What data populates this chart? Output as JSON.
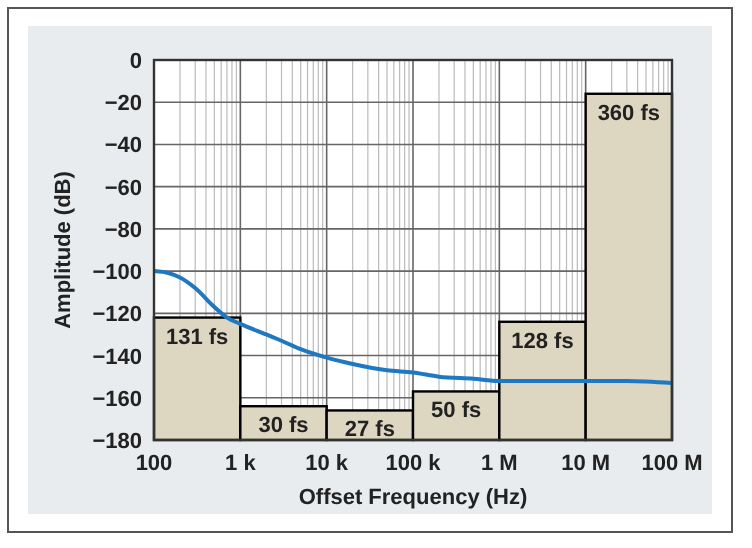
{
  "chart_data": {
    "type": "bar",
    "xlabel": "Offset Frequency (Hz)",
    "ylabel": "Amplitude (dB)",
    "log": "x",
    "grid": true,
    "xlim": [
      100,
      100000000
    ],
    "xticks": [
      100,
      {
        "value": 1000,
        "label": "1 k"
      },
      {
        "value": 10000,
        "label": "10 k"
      },
      {
        "value": 100000,
        "label": "100 k"
      },
      {
        "value": 1000000,
        "label": "1 M"
      },
      {
        "value": 10000000,
        "label": "10 M"
      },
      {
        "value": 100000000,
        "label": "100 M"
      }
    ],
    "annotations": [
      {
        "text": "131 fs",
        "x": 316.2,
        "y": -122
      },
      {
        "text": "30 fs",
        "x": 3162,
        "y": -164
      },
      {
        "text": "27 fs",
        "x": 31620,
        "y": -166
      },
      {
        "text": "50 fs",
        "x": 316200,
        "y": -157
      },
      {
        "text": "128 fs",
        "x": 3162000,
        "y": -124
      },
      {
        "text": "360 fs",
        "x": 31620000,
        "y": -16
      }
    ],
    "ylim": [
      -180,
      0
    ],
    "yticks": [
      -180,
      -160,
      -140,
      -120,
      -100,
      -80,
      -60,
      -40,
      -20,
      0
    ],
    "series": [
      {
        "color": "#ddd6c1",
        "x": [
          316.2,
          3162,
          31620,
          316200,
          3162000,
          31620000
        ],
        "base": [
          -180,
          -180,
          -180,
          -180,
          -180,
          -180
        ],
        "values": [
          58,
          16,
          14,
          23,
          56,
          164
        ]
      },
      {
        "type": "line",
        "color": "#1e78c2",
        "x": [
          100,
          150,
          200,
          300,
          500,
          700,
          1000,
          2000,
          3000,
          5000,
          10000,
          20000,
          50000,
          100000,
          200000,
          500000,
          1000000,
          2000000,
          10000000,
          30000000,
          100000000
        ],
        "values": [
          -100,
          -101,
          -103,
          -108,
          -117,
          -122,
          -125,
          -130,
          -133,
          -137,
          -141,
          -144,
          -147,
          -148,
          -150,
          -151,
          -152,
          -152,
          -152,
          -152,
          -153
        ]
      }
    ]
  }
}
